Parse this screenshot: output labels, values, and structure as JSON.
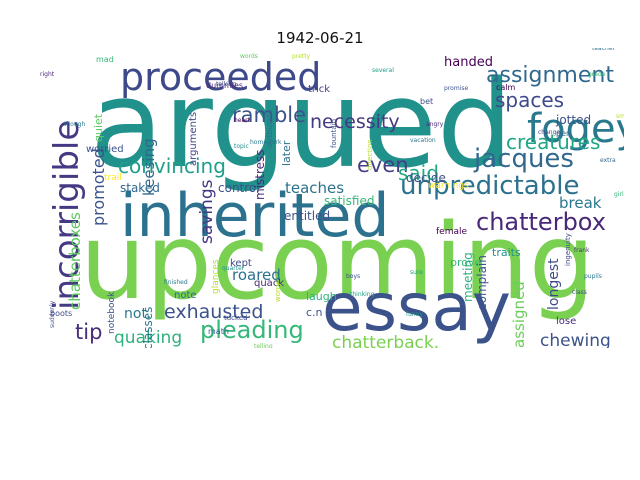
{
  "figure": {
    "title": "1942-06-21"
  },
  "words": [
    {
      "text": "argued",
      "color": "#21918c"
    },
    {
      "text": "upcoming",
      "color": "#7ad151"
    },
    {
      "text": "inherited",
      "color": "#2c728e"
    },
    {
      "text": "essay",
      "color": "#3b528b"
    },
    {
      "text": "proceeded",
      "color": "#3e4989"
    },
    {
      "text": "incorrigible",
      "color": "#443983"
    },
    {
      "text": "fogey",
      "color": "#2a788e"
    },
    {
      "text": "unpredictable",
      "color": "#2c728e"
    },
    {
      "text": "jacques",
      "color": "#31688e"
    },
    {
      "text": "chatterbox",
      "color": "#482878"
    },
    {
      "text": "pleading",
      "color": "#35b779"
    },
    {
      "text": "assignment",
      "color": "#31688e"
    },
    {
      "text": "spaces",
      "color": "#3e4989"
    },
    {
      "text": "ramble",
      "color": "#3b528b"
    },
    {
      "text": "necessity",
      "color": "#443983"
    },
    {
      "text": "creatures",
      "color": "#21a685"
    },
    {
      "text": "convincing",
      "color": "#1f9e89"
    },
    {
      "text": "even",
      "color": "#433e85"
    },
    {
      "text": "said",
      "color": "#22a884"
    },
    {
      "text": "exhausted",
      "color": "#3b528b"
    },
    {
      "text": "tip",
      "color": "#472d7b"
    },
    {
      "text": "quaking",
      "color": "#2db27d"
    },
    {
      "text": "chatterback.",
      "color": "#7ad151"
    },
    {
      "text": "chewing",
      "color": "#3b528b"
    },
    {
      "text": "savings",
      "color": "#453882"
    },
    {
      "text": "promoted",
      "color": "#3b528b"
    },
    {
      "text": "chatterboxes",
      "color": "#5ec962"
    },
    {
      "text": "break",
      "color": "#2a788e"
    },
    {
      "text": "assigned",
      "color": "#6ccd5a"
    },
    {
      "text": "teaches",
      "color": "#2c728e"
    },
    {
      "text": "roared",
      "color": "#2c728e"
    },
    {
      "text": "keesing",
      "color": "#31688e"
    },
    {
      "text": "longest",
      "color": "#3e4989"
    },
    {
      "text": "not.",
      "color": "#2a788e"
    },
    {
      "text": "handed",
      "color": "#440154"
    },
    {
      "text": "staked",
      "color": "#31688e"
    },
    {
      "text": "control",
      "color": "#3b528b"
    },
    {
      "text": "satisfied",
      "color": "#35b779"
    },
    {
      "text": "decide",
      "color": "#3b528b"
    },
    {
      "text": "entitled",
      "color": "#3b528b"
    },
    {
      "text": "complain",
      "color": "#3b528b"
    },
    {
      "text": "meeting",
      "color": "#2db27d"
    },
    {
      "text": "mistress",
      "color": "#482878"
    },
    {
      "text": "jotted",
      "color": "#3b528b"
    },
    {
      "text": "classes",
      "color": "#2a788e"
    },
    {
      "text": "c.n",
      "color": "#3b528b"
    },
    {
      "text": "quiet",
      "color": "#5ec962"
    },
    {
      "text": "worried",
      "color": "#3b528b"
    },
    {
      "text": "kept",
      "color": "#3e4989"
    },
    {
      "text": "prove",
      "color": "#35b779"
    },
    {
      "text": "trick",
      "color": "#433e85"
    },
    {
      "text": "laugh",
      "color": "#2db27d"
    },
    {
      "text": "quack",
      "color": "#482878"
    },
    {
      "text": "note",
      "color": "#31688e"
    },
    {
      "text": "lose",
      "color": "#472d7b"
    },
    {
      "text": "traits",
      "color": "#21918c"
    },
    {
      "text": "later",
      "color": "#2c728e"
    },
    {
      "text": "arguments",
      "color": "#3e4989"
    },
    {
      "text": "glances",
      "color": "#b5de2b"
    },
    {
      "text": "warnings",
      "color": "#fde725"
    },
    {
      "text": "female",
      "color": "#440154"
    },
    {
      "text": "notebook",
      "color": "#3b528b"
    },
    {
      "text": "dummies",
      "color": "#482878"
    },
    {
      "text": "outbursts",
      "color": "#2c728e"
    },
    {
      "text": "math",
      "color": "#31688e"
    },
    {
      "text": "calm",
      "color": "#440154"
    },
    {
      "text": "bet",
      "color": "#3b528b"
    },
    {
      "text": "pen",
      "color": "#31688e"
    },
    {
      "text": "mad",
      "color": "#35b779"
    },
    {
      "text": "boots",
      "color": "#3e4989"
    },
    {
      "text": "tucked",
      "color": "#3e4989"
    },
    {
      "text": "direction",
      "color": "#b5de2b"
    },
    {
      "text": "fountain",
      "color": "#3b528b"
    },
    {
      "text": "vacation",
      "color": "#2a788e"
    },
    {
      "text": "sure",
      "color": "#1f9e89"
    },
    {
      "text": "ingenuity",
      "color": "#3e4989"
    },
    {
      "text": "worry",
      "color": "#b5de2b"
    },
    {
      "text": "change",
      "color": "#3e4989"
    },
    {
      "text": "heart",
      "color": "#440154"
    },
    {
      "text": "homework",
      "color": "#2a788e"
    },
    {
      "text": "grade",
      "color": "#35b779"
    },
    {
      "text": "angry",
      "color": "#482878"
    },
    {
      "text": "topic",
      "color": "#21918c"
    },
    {
      "text": "boys",
      "color": "#3b528b"
    },
    {
      "text": "talking",
      "color": "#3e4989"
    },
    {
      "text": "quarter",
      "color": "#21918c"
    },
    {
      "text": "telling",
      "color": "#6ccd5a"
    },
    {
      "text": "thinking",
      "color": "#1f9e89"
    },
    {
      "text": "teacher",
      "color": "#2c728e"
    },
    {
      "text": "smile",
      "color": "#b5de2b"
    },
    {
      "text": "pupils",
      "color": "#2a788e"
    },
    {
      "text": "suddenly",
      "color": "#3e4989"
    },
    {
      "text": "promise",
      "color": "#3b528b"
    },
    {
      "text": "right",
      "color": "#482878"
    },
    {
      "text": "funny",
      "color": "#21918c"
    },
    {
      "text": "frank",
      "color": "#472d7b"
    },
    {
      "text": "class",
      "color": "#3e4989"
    },
    {
      "text": "extra",
      "color": "#31688e"
    },
    {
      "text": "though",
      "color": "#2a788e"
    },
    {
      "text": "girls",
      "color": "#35b779"
    },
    {
      "text": "fault",
      "color": "#6ccd5a"
    },
    {
      "text": "finished",
      "color": "#2a788e"
    },
    {
      "text": "several",
      "color": "#1f9e89"
    },
    {
      "text": "words",
      "color": "#5ec962"
    },
    {
      "text": "pretty",
      "color": "#b5de2b"
    },
    {
      "text": "trail",
      "color": "#fde725"
    }
  ]
}
